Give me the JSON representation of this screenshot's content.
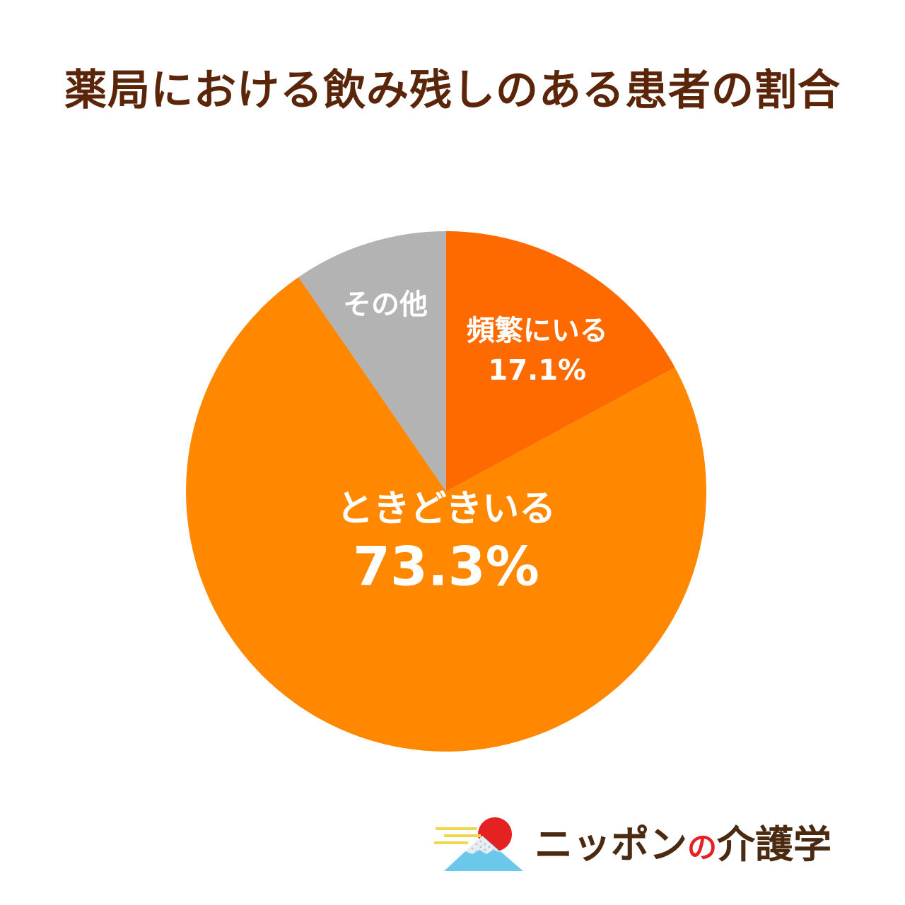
{
  "chart_data": {
    "type": "pie",
    "title": "薬局における飲み残しのある患者の割合",
    "start_angle_deg": 0,
    "direction": "clockwise",
    "slices": [
      {
        "label": "頻繁にいる",
        "value": 17.1,
        "value_text": "17.1%",
        "color": "#ff6a00"
      },
      {
        "label": "ときどきいる",
        "value": 73.3,
        "value_text": "73.3%",
        "color": "#ff8800"
      },
      {
        "label": "その他",
        "value": 9.6,
        "value_text": "",
        "color": "#b3b3b3"
      }
    ]
  },
  "brand": {
    "name_prefix": "ニッポン",
    "name_no": "の",
    "name_suffix": "介護学",
    "colors": {
      "sun": "#e52222",
      "mountain": "#6cc8ea",
      "cloud": "#f2d64b",
      "text": "#4a2a10"
    }
  }
}
